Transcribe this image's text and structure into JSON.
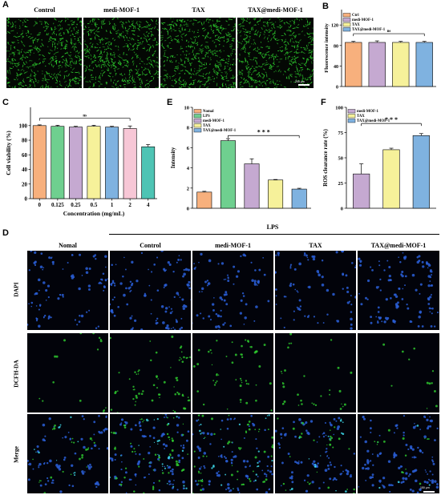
{
  "panels": {
    "A": {
      "label": "A",
      "titles": [
        "Control",
        "medi-MOF-1",
        "TAX",
        "TAX@medi-MOF-1"
      ],
      "scalebar": "200 μm"
    },
    "B": {
      "label": "B",
      "sig": "ns"
    },
    "C": {
      "label": "C",
      "sig": "ns"
    },
    "E": {
      "label": "E",
      "sig": "* * *"
    },
    "F": {
      "label": "F",
      "sig": "* * *"
    },
    "D": {
      "label": "D",
      "group_label": "LPS",
      "col_titles": [
        "Nomal",
        "Control",
        "medi-MOF-1",
        "TAX",
        "TAX@medi-MOF-1"
      ],
      "row_labels": [
        "DAPI",
        "DCFH-DA",
        "Merge"
      ],
      "scalebar": "150 μm"
    }
  },
  "colors": {
    "orange": "#f7b07d",
    "green": "#6fcf8f",
    "purple": "#c5a9d1",
    "yellow": "#f6f19a",
    "blue": "#7fb2e0",
    "pink": "#f7c7d6",
    "teal": "#4ec4b4",
    "cellgreen": "#2fd02f",
    "dapi": "#2a5fd8"
  },
  "chart_data": [
    {
      "panel": "B",
      "type": "bar",
      "categories": [
        "Ctrl",
        "medi-MOF-1",
        "TAX",
        "TAX@medi-MOF-1"
      ],
      "values": [
        86,
        86,
        86,
        86
      ],
      "errors": [
        2,
        3,
        2,
        2
      ],
      "colors": [
        "#f7b07d",
        "#c5a9d1",
        "#f6f19a",
        "#7fb2e0"
      ],
      "legend": [
        "Ctrl",
        "medi-MOF-1",
        "TAX",
        "TAX@medi-MOF-1"
      ],
      "ylabel": "Fluorescence intensity",
      "yticks": [
        0,
        40,
        80,
        120
      ],
      "ylim": [
        0,
        150
      ]
    },
    {
      "panel": "C",
      "type": "bar",
      "categories": [
        "0",
        "0.125",
        "0.25",
        "0.5",
        "1",
        "2",
        "4"
      ],
      "values": [
        100,
        99,
        98,
        99,
        98,
        96,
        71
      ],
      "errors": [
        1,
        1.5,
        1,
        1.5,
        1,
        3.5,
        3
      ],
      "colors": [
        "#f7b07d",
        "#6fcf8f",
        "#c5a9d1",
        "#f6f19a",
        "#7fb2e0",
        "#f7c7d6",
        "#4ec4b4"
      ],
      "xlabel": "Concentration (mg/mL)",
      "ylabel": "Cell viability (%)",
      "yticks": [
        0,
        20,
        40,
        60,
        80,
        100
      ],
      "ylim": [
        0,
        125
      ]
    },
    {
      "panel": "E",
      "type": "bar",
      "categories": [
        "Nomal",
        "LPS",
        "medi-MOF-1",
        "TAX",
        "TAX@medi-MOF-1"
      ],
      "values": [
        1.6,
        6.7,
        4.4,
        2.8,
        1.9
      ],
      "errors": [
        0.08,
        0.2,
        0.5,
        0.05,
        0.08
      ],
      "colors": [
        "#f7b07d",
        "#6fcf8f",
        "#c5a9d1",
        "#f6f19a",
        "#7fb2e0"
      ],
      "legend": [
        "Nomal",
        "LPS",
        "medi-MOF-1",
        "TAX",
        "TAX@medi-MOF-1"
      ],
      "ylabel": "Intensity",
      "yticks": [
        0,
        2,
        4,
        6,
        8,
        10
      ],
      "ylim": [
        0,
        10
      ]
    },
    {
      "panel": "F",
      "type": "bar",
      "categories": [
        "medi-MOF-1",
        "TAX",
        "TAX@medi-MOF-1"
      ],
      "values": [
        34,
        58,
        72
      ],
      "errors": [
        10,
        1.5,
        2
      ],
      "colors": [
        "#c5a9d1",
        "#f6f19a",
        "#7fb2e0"
      ],
      "legend": [
        "medi-MOF-1",
        "TAX",
        "TAX@medi-MOF-1"
      ],
      "ylabel": "ROS clearance rate (%)",
      "yticks": [
        0,
        25,
        50,
        75,
        100
      ],
      "ylim": [
        0,
        100
      ]
    }
  ]
}
